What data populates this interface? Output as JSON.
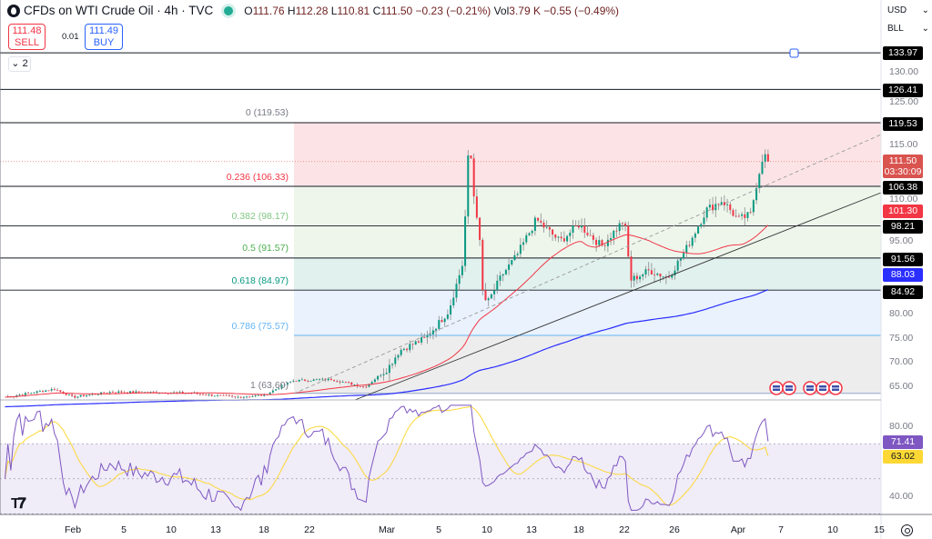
{
  "header": {
    "title": "CFDs on WTI Crude Oil · 4h · TVC",
    "ohlc": {
      "open_label": "O",
      "open": "111.76",
      "high_label": "H",
      "high": "112.28",
      "low_label": "L",
      "low": "110.81",
      "close_label": "C",
      "close": "111.50",
      "change": "−0.23 (−0.21%)",
      "vol_label": "Vol",
      "vol": "3.79 K",
      "vol_change": "−0.55 (−0.49%)"
    },
    "status_color": "#22ab94"
  },
  "trade": {
    "sell_price": "111.48",
    "sell_label": "SELL",
    "spread": "0.01",
    "buy_price": "111.49",
    "buy_label": "BUY"
  },
  "collapse_label": "2",
  "price_axis": {
    "currency": "USD",
    "unit": "BLL",
    "ticks": [
      "130.00",
      "125.00",
      "115.00",
      "110.00",
      "95.00",
      "80.00",
      "75.00",
      "70.00",
      "65.00"
    ],
    "tags": [
      {
        "value": "133.97",
        "bg": "#000000"
      },
      {
        "value": "126.41",
        "bg": "#000000"
      },
      {
        "value": "119.53",
        "bg": "#000000"
      },
      {
        "value": "106.38",
        "bg": "#000000"
      },
      {
        "value": "101.30",
        "bg": "#f23645"
      },
      {
        "value": "98.21",
        "bg": "#000000"
      },
      {
        "value": "91.56",
        "bg": "#000000"
      },
      {
        "value": "88.03",
        "bg": "#2a2eff"
      },
      {
        "value": "84.92",
        "bg": "#000000"
      }
    ],
    "last_price": "111.50",
    "countdown": "03:30:09",
    "last_color": "#d9534f"
  },
  "rsi_axis": {
    "ticks": [
      "80.00",
      "40.00"
    ],
    "rsi": "71.41",
    "rsi_color": "#7e57c2",
    "ma": "63.02",
    "ma_color": "#fdd835"
  },
  "fib": [
    {
      "label": "0 (119.53)",
      "price": 119.53,
      "color": "#787b86",
      "fill": "#fce4e6"
    },
    {
      "label": "0.236 (106.33)",
      "price": 106.33,
      "color": "#f23645",
      "fill": "#eef6ec"
    },
    {
      "label": "0.382 (98.17)",
      "price": 98.17,
      "color": "#81c784",
      "fill": "#eef6ec"
    },
    {
      "label": "0.5 (91.57)",
      "price": 91.57,
      "color": "#4caf50",
      "fill": "#e1f1ee"
    },
    {
      "label": "0.618 (84.97)",
      "price": 84.97,
      "color": "#089981",
      "fill": "#e9f2fd"
    },
    {
      "label": "0.786 (75.57)",
      "price": 75.57,
      "color": "#64b5f6",
      "fill": "#ededed"
    },
    {
      "label": "1 (63.60)",
      "price": 63.6,
      "color": "#787b86",
      "fill": null
    }
  ],
  "horizontal_lines": [
    133.97,
    126.41,
    119.53,
    106.38,
    98.21,
    91.56,
    84.92
  ],
  "time_axis": [
    "Feb",
    "5",
    "10",
    "13",
    "18",
    "22",
    "Mar",
    "5",
    "10",
    "13",
    "18",
    "22",
    "26",
    "Apr",
    "7",
    "10",
    "15"
  ],
  "chart_data": {
    "type": "candlestick",
    "up_color": "#089981",
    "down_color": "#f23645",
    "price_path": [
      [
        "Jan 26 12:00",
        62.8
      ],
      [
        "Jan 30 12:00",
        64.5
      ],
      [
        "Feb 1 00:00",
        62.8
      ],
      [
        "Feb 4 00:00",
        63.9
      ],
      [
        "Feb 11 00:00",
        63.7
      ],
      [
        "Feb 15 00:00",
        62.8
      ],
      [
        "Feb 18 00:00",
        63.2
      ],
      [
        "Feb 20 12:00",
        66.2
      ],
      [
        "Feb 24 00:00",
        66.5
      ],
      [
        "Feb 27 00:00",
        64.9
      ],
      [
        "Mar 1 00:00",
        68.5
      ],
      [
        "Mar 2 00:00",
        72.5
      ],
      [
        "Mar 4 00:00",
        75
      ],
      [
        "Mar 6 00:00",
        80.5
      ],
      [
        "Mar 7 12:00",
        90.5
      ],
      [
        "Mar 8 04:00",
        116.7
      ],
      [
        "Mar 8 16:00",
        104
      ],
      [
        "Mar 9 04:00",
        98
      ],
      [
        "Mar 9 12:00",
        85
      ],
      [
        "Mar 10 00:00",
        82
      ],
      [
        "Mar 11 00:00",
        88
      ],
      [
        "Mar 12 00:00",
        92
      ],
      [
        "Mar 13 12:00",
        99.5
      ],
      [
        "Mar 16 00:00",
        95
      ],
      [
        "Mar 18 00:00",
        98.5
      ],
      [
        "Mar 20 00:00",
        94
      ],
      [
        "Mar 22 00:00",
        99.5
      ],
      [
        "Mar 22 12:00",
        87
      ],
      [
        "Mar 24 00:00",
        89
      ],
      [
        "Mar 25 12:00",
        87.5
      ],
      [
        "Mar 27 00:00",
        93
      ],
      [
        "Mar 29 00:00",
        101.5
      ],
      [
        "Mar 30 12:00",
        103.5
      ],
      [
        "Apr 1 00:00",
        99.5
      ],
      [
        "Apr 2 18:00",
        100.5
      ],
      [
        "Apr 3 12:00",
        106.4
      ],
      [
        "Apr 4 12:00",
        113
      ],
      [
        "Apr 5 12:00",
        111.5
      ]
    ],
    "ma_fast_color": "#f23645",
    "ma_slow_color": "#2a2eff",
    "rsi_color": "#7e57c2",
    "rsi_ma_color": "#fdd835",
    "rsi_levels": [
      70,
      50,
      30
    ]
  }
}
